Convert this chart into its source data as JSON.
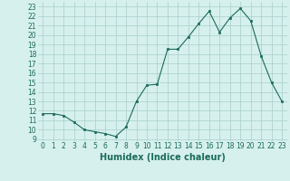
{
  "x": [
    0,
    1,
    2,
    3,
    4,
    5,
    6,
    7,
    8,
    9,
    10,
    11,
    12,
    13,
    14,
    15,
    16,
    17,
    18,
    19,
    20,
    21,
    22,
    23
  ],
  "y": [
    11.7,
    11.7,
    11.5,
    10.8,
    10.0,
    9.8,
    9.6,
    9.3,
    10.3,
    13.0,
    14.7,
    14.8,
    18.5,
    18.5,
    19.8,
    21.2,
    22.5,
    20.3,
    21.8,
    22.8,
    21.5,
    17.8,
    15.0,
    13.0
  ],
  "xlabel": "Humidex (Indice chaleur)",
  "line_color": "#1a6b5a",
  "marker_color": "#1a6b5a",
  "bg_color": "#d6f0ee",
  "grid_color": "#a8ceca",
  "xlim": [
    -0.5,
    23.5
  ],
  "ylim": [
    8.8,
    23.5
  ],
  "yticks": [
    9,
    10,
    11,
    12,
    13,
    14,
    15,
    16,
    17,
    18,
    19,
    20,
    21,
    22,
    23
  ],
  "xticks": [
    0,
    1,
    2,
    3,
    4,
    5,
    6,
    7,
    8,
    9,
    10,
    11,
    12,
    13,
    14,
    15,
    16,
    17,
    18,
    19,
    20,
    21,
    22,
    23
  ],
  "tick_fontsize": 5.5,
  "xlabel_fontsize": 7,
  "label_color": "#1a6b5a"
}
